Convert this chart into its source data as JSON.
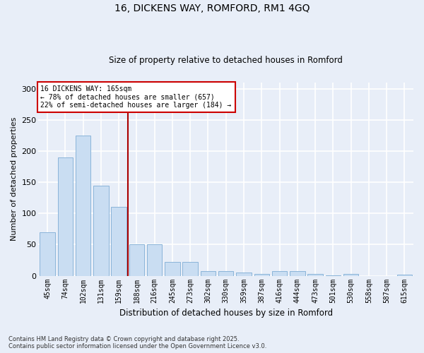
{
  "title1": "16, DICKENS WAY, ROMFORD, RM1 4GQ",
  "title2": "Size of property relative to detached houses in Romford",
  "xlabel": "Distribution of detached houses by size in Romford",
  "ylabel": "Number of detached properties",
  "categories": [
    "45sqm",
    "74sqm",
    "102sqm",
    "131sqm",
    "159sqm",
    "188sqm",
    "216sqm",
    "245sqm",
    "273sqm",
    "302sqm",
    "330sqm",
    "359sqm",
    "387sqm",
    "416sqm",
    "444sqm",
    "473sqm",
    "501sqm",
    "530sqm",
    "558sqm",
    "587sqm",
    "615sqm"
  ],
  "values": [
    70,
    190,
    225,
    145,
    110,
    50,
    50,
    22,
    22,
    8,
    7,
    5,
    3,
    7,
    7,
    3,
    1,
    3,
    0,
    0,
    2
  ],
  "bar_color": "#c9ddf2",
  "bar_edge_color": "#8ab4d9",
  "background_color": "#e8eef8",
  "grid_color": "#ffffff",
  "annotation_box_color": "#ffffff",
  "annotation_border_color": "#cc0000",
  "vline_color": "#aa0000",
  "vline_x": 4.5,
  "annotation_text_line1": "16 DICKENS WAY: 165sqm",
  "annotation_text_line2": "← 78% of detached houses are smaller (657)",
  "annotation_text_line3": "22% of semi-detached houses are larger (184) →",
  "footer_line1": "Contains HM Land Registry data © Crown copyright and database right 2025.",
  "footer_line2": "Contains public sector information licensed under the Open Government Licence v3.0.",
  "ylim": [
    0,
    310
  ],
  "yticks": [
    0,
    50,
    100,
    150,
    200,
    250,
    300
  ],
  "figsize": [
    6.0,
    5.0
  ],
  "dpi": 100
}
